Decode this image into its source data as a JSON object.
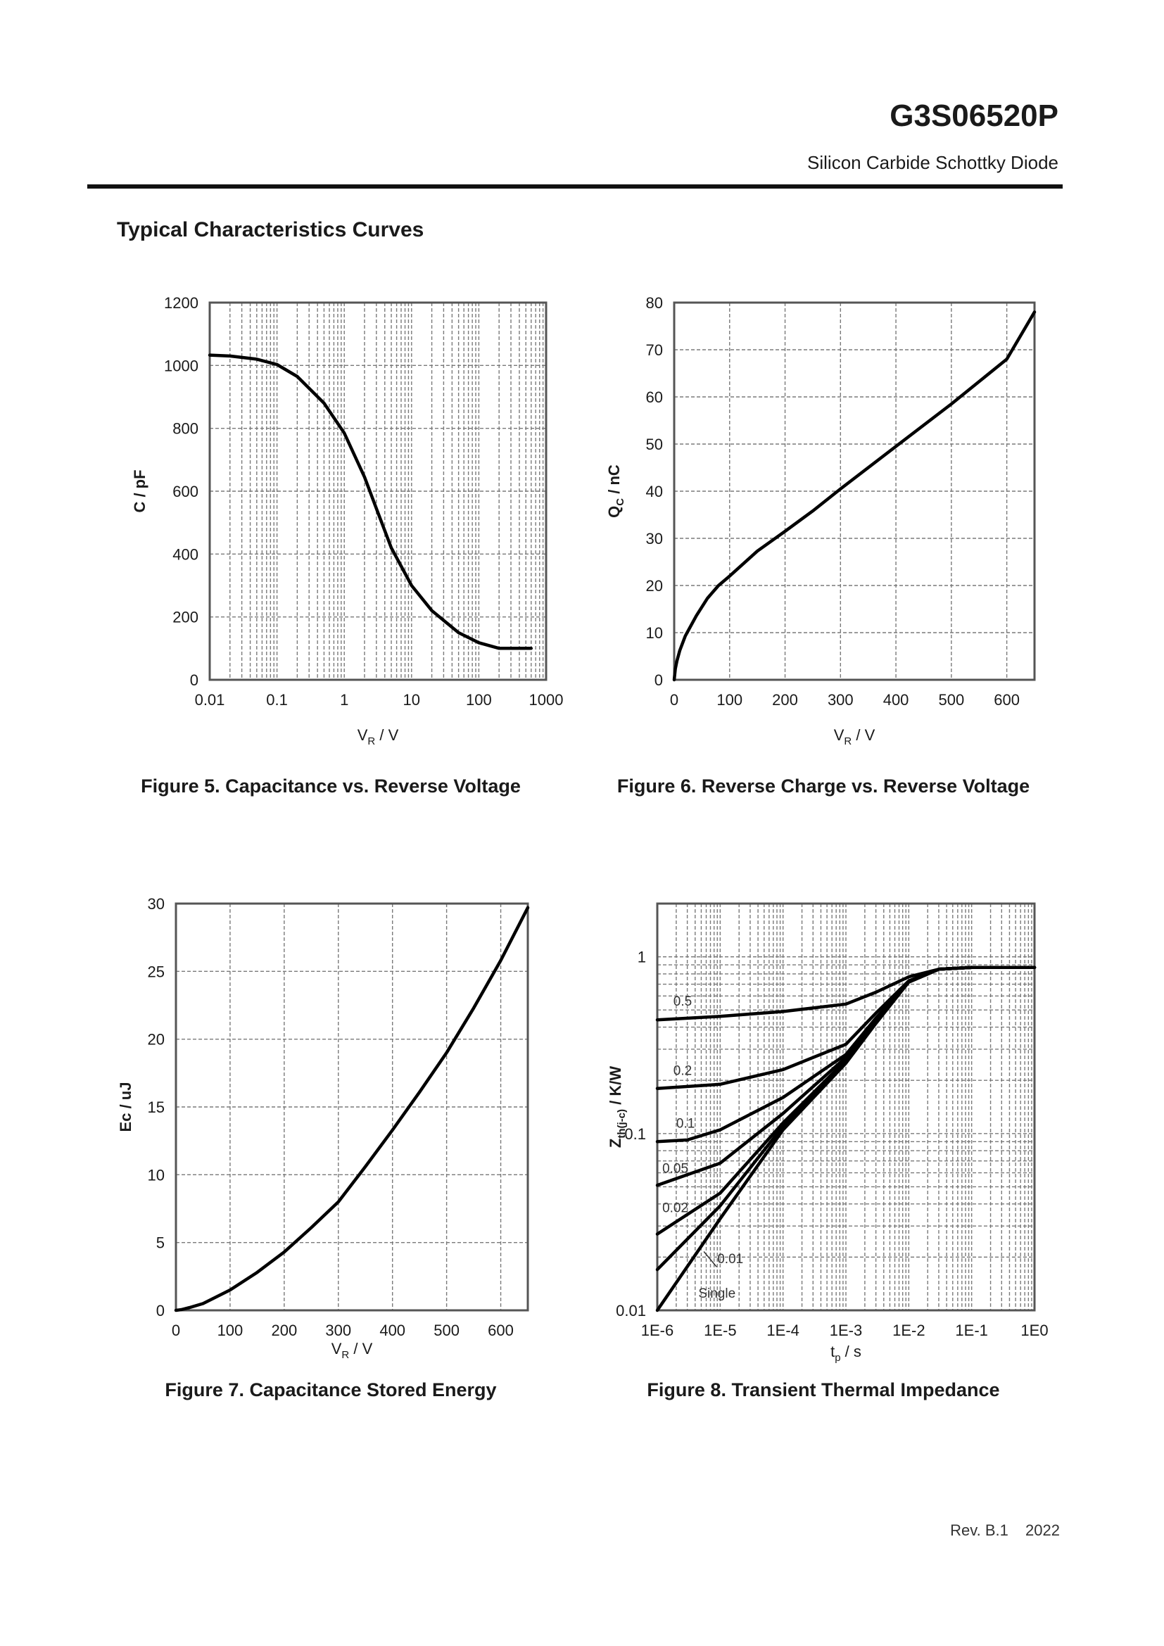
{
  "header": {
    "part_number": "G3S06520P",
    "subtitle": "Silicon Carbide Schottky Diode"
  },
  "section_title": "Typical Characteristics Curves",
  "footer": {
    "revision": "Rev. B.1",
    "year": "2022"
  },
  "chart_data": [
    {
      "id": "fig5",
      "type": "line",
      "caption": "Figure 5. Capacitance vs. Reverse Voltage",
      "xscale": "log",
      "xlim": [
        0.01,
        1000
      ],
      "ylim": [
        0,
        1200
      ],
      "xticks": [
        0.01,
        0.1,
        1,
        10,
        100,
        1000
      ],
      "xtick_labels": [
        "0.01",
        "0.1",
        "1",
        "10",
        "100",
        "1000"
      ],
      "yticks": [
        0,
        200,
        400,
        600,
        800,
        1000,
        1200
      ],
      "ytick_labels": [
        "0",
        "200",
        "400",
        "600",
        "800",
        "1000",
        "1200"
      ],
      "xlabel_main": "V",
      "xlabel_sub": "R",
      "xlabel_tail": " / V",
      "ylabel_main": "C / pF",
      "ylabel_sub": "",
      "ylabel_tail": "",
      "grid": true,
      "series": [
        {
          "name": "C",
          "x": [
            0.01,
            0.02,
            0.05,
            0.1,
            0.2,
            0.5,
            1,
            2,
            3,
            5,
            10,
            20,
            50,
            100,
            200,
            400,
            600
          ],
          "y": [
            1033,
            1030,
            1020,
            1003,
            965,
            880,
            785,
            645,
            545,
            420,
            300,
            220,
            150,
            118,
            100,
            100,
            100
          ]
        }
      ]
    },
    {
      "id": "fig6",
      "type": "line",
      "caption": "Figure 6. Reverse Charge vs. Reverse Voltage",
      "xscale": "linear",
      "xlim": [
        0,
        650
      ],
      "ylim": [
        0,
        80
      ],
      "xticks": [
        0,
        100,
        200,
        300,
        400,
        500,
        600
      ],
      "xtick_labels": [
        "0",
        "100",
        "200",
        "300",
        "400",
        "500",
        "600"
      ],
      "yticks": [
        0,
        10,
        20,
        30,
        40,
        50,
        60,
        70,
        80
      ],
      "ytick_labels": [
        "0",
        "10",
        "20",
        "30",
        "40",
        "50",
        "60",
        "70",
        "80"
      ],
      "xlabel_main": "V",
      "xlabel_sub": "R",
      "xlabel_tail": " / V",
      "ylabel_main": "Q",
      "ylabel_sub": "C",
      "ylabel_tail": " / nC",
      "grid": true,
      "series": [
        {
          "name": "Qc",
          "x": [
            0,
            2,
            5,
            10,
            20,
            40,
            60,
            80,
            100,
            150,
            200,
            250,
            300,
            400,
            500,
            600,
            650
          ],
          "y": [
            0,
            2.3,
            4,
            6.2,
            9.3,
            13.6,
            17.3,
            20,
            22,
            27.3,
            31.5,
            35.8,
            40.5,
            49.5,
            58.5,
            68,
            78
          ]
        }
      ]
    },
    {
      "id": "fig7",
      "type": "line",
      "caption": "Figure 7. Capacitance Stored Energy",
      "xscale": "linear",
      "xlim": [
        0,
        650
      ],
      "ylim": [
        0,
        30
      ],
      "xticks": [
        0,
        100,
        200,
        300,
        400,
        500,
        600
      ],
      "xtick_labels": [
        "0",
        "100",
        "200",
        "300",
        "400",
        "500",
        "600"
      ],
      "yticks": [
        0,
        5,
        10,
        15,
        20,
        25,
        30
      ],
      "ytick_labels": [
        "0",
        "5",
        "10",
        "15",
        "20",
        "25",
        "30"
      ],
      "xlabel_main": "V",
      "xlabel_sub": "R",
      "xlabel_tail": " / V",
      "ylabel_main": "Ec / uJ",
      "ylabel_sub": "",
      "ylabel_tail": "",
      "grid": true,
      "series": [
        {
          "name": "Ec",
          "x": [
            0,
            10,
            25,
            50,
            100,
            150,
            200,
            250,
            300,
            350,
            400,
            450,
            500,
            550,
            600,
            650
          ],
          "y": [
            0,
            0.05,
            0.2,
            0.5,
            1.5,
            2.8,
            4.3,
            6.1,
            8.0,
            10.6,
            13.3,
            16.1,
            19.0,
            22.3,
            25.8,
            29.7
          ]
        }
      ]
    },
    {
      "id": "fig8",
      "type": "line",
      "caption": "Figure 8. Transient Thermal Impedance",
      "xscale": "log",
      "yscale": "log",
      "xlim": [
        1e-06,
        1
      ],
      "ylim": [
        0.01,
        2
      ],
      "xticks": [
        1e-06,
        1e-05,
        0.0001,
        0.001,
        0.01,
        0.1,
        1
      ],
      "xtick_labels": [
        "1E-6",
        "1E-5",
        "1E-4",
        "1E-3",
        "1E-2",
        "1E-1",
        "1E0"
      ],
      "yticks": [
        0.01,
        0.1,
        1
      ],
      "ytick_labels": [
        "0.01",
        "0.1",
        "1"
      ],
      "xlabel_main": "t",
      "xlabel_sub": "p",
      "xlabel_tail": " / s",
      "ylabel_main": "Z",
      "ylabel_sub": "th(j-c)",
      "ylabel_tail": " / K/W",
      "grid": true,
      "series": [
        {
          "name": "0.5",
          "x": [
            1e-06,
            1e-05,
            0.0001,
            0.001,
            0.003,
            0.01,
            0.03,
            0.1,
            1
          ],
          "y": [
            0.44,
            0.46,
            0.49,
            0.54,
            0.63,
            0.77,
            0.85,
            0.87,
            0.87
          ]
        },
        {
          "name": "0.2",
          "x": [
            1e-06,
            1e-05,
            0.0001,
            0.001,
            0.003,
            0.01,
            0.03,
            0.1,
            1
          ],
          "y": [
            0.18,
            0.19,
            0.23,
            0.32,
            0.48,
            0.73,
            0.85,
            0.87,
            0.87
          ]
        },
        {
          "name": "0.1",
          "x": [
            1e-06,
            3e-06,
            1e-05,
            0.0001,
            0.001,
            0.003,
            0.01,
            0.03,
            0.1,
            1
          ],
          "y": [
            0.09,
            0.092,
            0.105,
            0.16,
            0.28,
            0.45,
            0.72,
            0.85,
            0.87,
            0.87
          ]
        },
        {
          "name": "0.05",
          "x": [
            1e-06,
            1e-05,
            0.0001,
            0.001,
            0.003,
            0.01,
            0.03,
            0.1,
            1
          ],
          "y": [
            0.051,
            0.068,
            0.13,
            0.27,
            0.44,
            0.72,
            0.85,
            0.87,
            0.87
          ]
        },
        {
          "name": "0.02",
          "x": [
            1e-06,
            1e-05,
            0.0001,
            0.001,
            0.003,
            0.01,
            0.03,
            0.1,
            1
          ],
          "y": [
            0.027,
            0.046,
            0.115,
            0.26,
            0.43,
            0.72,
            0.85,
            0.87,
            0.87
          ]
        },
        {
          "name": "0.01",
          "x": [
            1e-06,
            1e-05,
            0.0001,
            0.001,
            0.003,
            0.01,
            0.03,
            0.1,
            1
          ],
          "y": [
            0.017,
            0.039,
            0.11,
            0.255,
            0.43,
            0.72,
            0.85,
            0.87,
            0.87
          ]
        },
        {
          "name": "Single",
          "x": [
            1e-06,
            1e-05,
            0.0001,
            0.001,
            0.003,
            0.01,
            0.03,
            0.1,
            1
          ],
          "y": [
            0.01,
            0.033,
            0.105,
            0.25,
            0.42,
            0.72,
            0.85,
            0.87,
            0.87
          ]
        }
      ]
    }
  ]
}
